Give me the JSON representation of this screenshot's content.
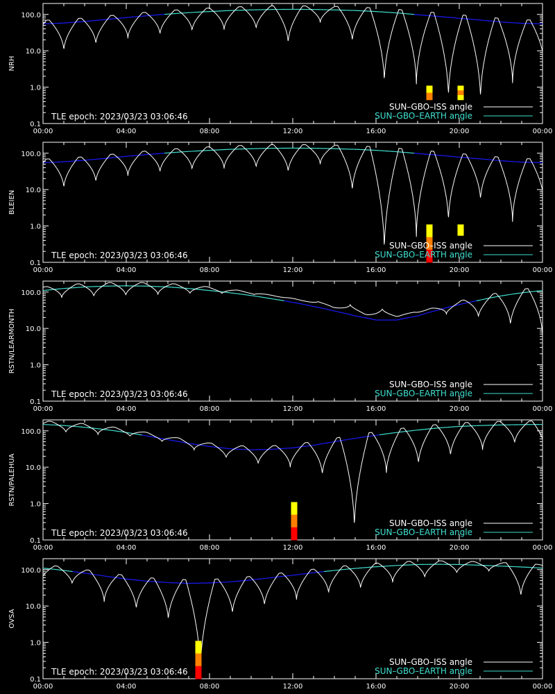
{
  "colors": {
    "background": "#000000",
    "axes": "#ffffff",
    "iss_line": "#ffffff",
    "earth_line_high": "#40e0d0",
    "earth_line_low": "#1a1aff",
    "bar_yellow": "#ffff00",
    "bar_orange": "#ff8000",
    "bar_red": "#ff0000"
  },
  "chart_data": [
    {
      "type": "line",
      "panel": "NRH",
      "ylabel": "NRH",
      "x_ticks": [
        "00:00",
        "04:00",
        "08:00",
        "12:00",
        "16:00",
        "20:00",
        "00:00"
      ],
      "x_range_hours": [
        0,
        24
      ],
      "y_ticks": [
        "0.1",
        "1.0",
        "10.0",
        "100.0"
      ],
      "y_scale": "log",
      "ylim": [
        0.1,
        200
      ],
      "annotation": "TLE epoch: 2023/03/23 03:06:46",
      "legend": [
        "SUN–GBO–ISS angle",
        "SUN–GBO–EARTH angle"
      ],
      "legend_position": "bottom-right",
      "earth_angle": {
        "hours": [
          0,
          1,
          2,
          3,
          4,
          5,
          6,
          7,
          8,
          9,
          10,
          11,
          12,
          13,
          14,
          15,
          16,
          17,
          18,
          19,
          20,
          21,
          22,
          23,
          24
        ],
        "values": [
          55,
          58,
          64,
          72,
          82,
          92,
          102,
          112,
          120,
          128,
          133,
          137,
          138,
          137,
          133,
          128,
          120,
          110,
          98,
          88,
          78,
          70,
          62,
          57,
          55
        ]
      },
      "iss_angle": {
        "period_hours": 1.54,
        "phase_hours": 1.0,
        "amplitude": 1.0,
        "minima": [
          10,
          15,
          22,
          28,
          35,
          38,
          40,
          16,
          60,
          18,
          1.3,
          1.2,
          0.5,
          0.45,
          1.3,
          3.5
        ]
      },
      "visibility_bars": [
        {
          "hour": 18.55,
          "levels": [
            "yellow",
            "orange"
          ],
          "top": 1.1,
          "bottom": 0.45
        },
        {
          "hour": 20.05,
          "levels": [
            "yellow",
            "orange",
            "yellow"
          ],
          "top": 1.1,
          "bottom": 0.45
        }
      ]
    },
    {
      "type": "line",
      "panel": "BLEIEN",
      "ylabel": "BLEIEN",
      "x_ticks": [
        "00:00",
        "04:00",
        "08:00",
        "12:00",
        "16:00",
        "20:00",
        "00:00"
      ],
      "x_range_hours": [
        0,
        24
      ],
      "y_ticks": [
        "0.1",
        "1.0",
        "10.0",
        "100.0"
      ],
      "y_scale": "log",
      "ylim": [
        0.1,
        200
      ],
      "annotation": "TLE epoch: 2023/03/23 03:06:46",
      "legend": [
        "SUN–GBO–ISS angle",
        "SUN–GBO–EARTH angle"
      ],
      "legend_position": "bottom-right",
      "earth_angle": {
        "hours": [
          0,
          1,
          2,
          3,
          4,
          5,
          6,
          7,
          8,
          9,
          10,
          11,
          12,
          13,
          14,
          15,
          16,
          17,
          18,
          19,
          20,
          21,
          22,
          23,
          24
        ],
        "values": [
          55,
          58,
          64,
          72,
          82,
          92,
          102,
          112,
          120,
          128,
          133,
          137,
          138,
          137,
          133,
          128,
          120,
          110,
          98,
          88,
          78,
          70,
          62,
          57,
          55
        ]
      },
      "iss_angle": {
        "period_hours": 1.54,
        "phase_hours": 1.0,
        "amplitude": 1.0,
        "minima": [
          11,
          16,
          24,
          30,
          35,
          38,
          40,
          30,
          50,
          9,
          0.2,
          0.5,
          1.3,
          5,
          1.3,
          3.5
        ]
      },
      "visibility_bars": [
        {
          "hour": 18.55,
          "levels": [
            "yellow",
            "orange",
            "red"
          ],
          "top": 1.1,
          "bottom": 0.1
        },
        {
          "hour": 20.05,
          "levels": [
            "yellow"
          ],
          "top": 1.1,
          "bottom": 0.55
        }
      ]
    },
    {
      "type": "line",
      "panel": "RSTN/LEARMONTH",
      "ylabel": "RSTN/LEARMONTH",
      "x_ticks": [
        "00:00",
        "04:00",
        "08:00",
        "12:00",
        "16:00",
        "20:00",
        "00:00"
      ],
      "x_range_hours": [
        0,
        24
      ],
      "y_ticks": [
        "0.1",
        "1.0",
        "10.0",
        "100.0"
      ],
      "y_scale": "log",
      "ylim": [
        0.1,
        200
      ],
      "annotation": "TLE epoch: 2023/03/23 03:06:46",
      "legend": [
        "SUN–GBO–ISS angle",
        "SUN–GBO–EARTH angle"
      ],
      "legend_position": "bottom-right",
      "earth_angle": {
        "hours": [
          0,
          1,
          2,
          3,
          4,
          5,
          6,
          7,
          8,
          9,
          10,
          11,
          12,
          13,
          14,
          15,
          16,
          17,
          18,
          19,
          20,
          21,
          22,
          23,
          24
        ],
        "values": [
          110,
          125,
          138,
          145,
          148,
          145,
          138,
          125,
          110,
          95,
          80,
          65,
          52,
          40,
          30,
          22,
          17,
          17,
          22,
          32,
          45,
          60,
          78,
          95,
          110
        ]
      },
      "iss_angle": {
        "period_hours": 1.54,
        "phase_hours": 0.9,
        "amplitude": 1.0,
        "minima": [
          70,
          75,
          80,
          85,
          90,
          90,
          85,
          70,
          55,
          45,
          35,
          28,
          25,
          20,
          12,
          6,
          4
        ]
      },
      "visibility_bars": []
    },
    {
      "type": "line",
      "panel": "RSTN/PALEHUA",
      "ylabel": "RSTN/PALEHUA",
      "x_ticks": [
        "00:00",
        "04:00",
        "08:00",
        "12:00",
        "16:00",
        "20:00",
        "00:00"
      ],
      "x_range_hours": [
        0,
        24
      ],
      "y_ticks": [
        "0.1",
        "1.0",
        "10.0",
        "100.0"
      ],
      "y_scale": "log",
      "ylim": [
        0.1,
        200
      ],
      "annotation": "TLE epoch: 2023/03/23 03:06:46",
      "legend": [
        "SUN–GBO–ISS angle",
        "SUN–GBO–EARTH angle"
      ],
      "legend_position": "bottom-right",
      "earth_angle": {
        "hours": [
          0,
          1,
          2,
          3,
          4,
          5,
          6,
          7,
          8,
          9,
          10,
          11,
          12,
          13,
          14,
          15,
          16,
          17,
          18,
          19,
          20,
          21,
          22,
          23,
          24
        ],
        "values": [
          150,
          140,
          125,
          108,
          90,
          72,
          57,
          45,
          37,
          32,
          30,
          31,
          34,
          40,
          50,
          62,
          75,
          90,
          105,
          120,
          132,
          140,
          145,
          148,
          150
        ]
      },
      "iss_angle": {
        "period_hours": 1.54,
        "phase_hours": 1.1,
        "amplitude": 1.0,
        "minima": [
          90,
          80,
          70,
          50,
          30,
          18,
          12,
          10,
          6,
          0.2,
          7,
          12,
          20,
          30,
          45,
          20,
          60,
          80
        ]
      },
      "visibility_bars": [
        {
          "hour": 12.05,
          "levels": [
            "yellow",
            "orange",
            "red"
          ],
          "top": 1.1,
          "bottom": 0.1
        }
      ]
    },
    {
      "type": "line",
      "panel": "OVSA",
      "ylabel": "OVSA",
      "x_ticks": [
        "00:00",
        "04:00",
        "08:00",
        "12:00",
        "16:00",
        "20:00",
        "00:00"
      ],
      "x_range_hours": [
        0,
        24
      ],
      "y_ticks": [
        "0.1",
        "1.0",
        "10.0",
        "100.0"
      ],
      "y_scale": "log",
      "ylim": [
        0.1,
        200
      ],
      "annotation": "TLE epoch: 2023/03/23 03:06:46",
      "legend": [
        "SUN–GBO–ISS angle",
        "SUN–GBO–EARTH angle"
      ],
      "legend_position": "bottom-right",
      "earth_angle": {
        "hours": [
          0,
          1,
          2,
          3,
          4,
          5,
          6,
          7,
          8,
          9,
          10,
          11,
          12,
          13,
          14,
          15,
          16,
          17,
          18,
          19,
          20,
          21,
          22,
          23,
          24
        ],
        "values": [
          110,
          95,
          80,
          66,
          55,
          48,
          44,
          42,
          43,
          46,
          52,
          60,
          70,
          82,
          95,
          108,
          120,
          130,
          138,
          140,
          138,
          132,
          125,
          118,
          110
        ]
      },
      "iss_angle": {
        "period_hours": 1.54,
        "phase_hours": 1.4,
        "amplitude": 1.0,
        "minima": [
          40,
          13,
          8,
          4,
          0.15,
          6,
          10,
          15,
          22,
          30,
          45,
          60,
          80,
          90,
          18,
          100,
          110
        ]
      },
      "visibility_bars": [
        {
          "hour": 7.45,
          "levels": [
            "yellow",
            "orange",
            "red"
          ],
          "top": 1.1,
          "bottom": 0.1
        }
      ]
    }
  ]
}
